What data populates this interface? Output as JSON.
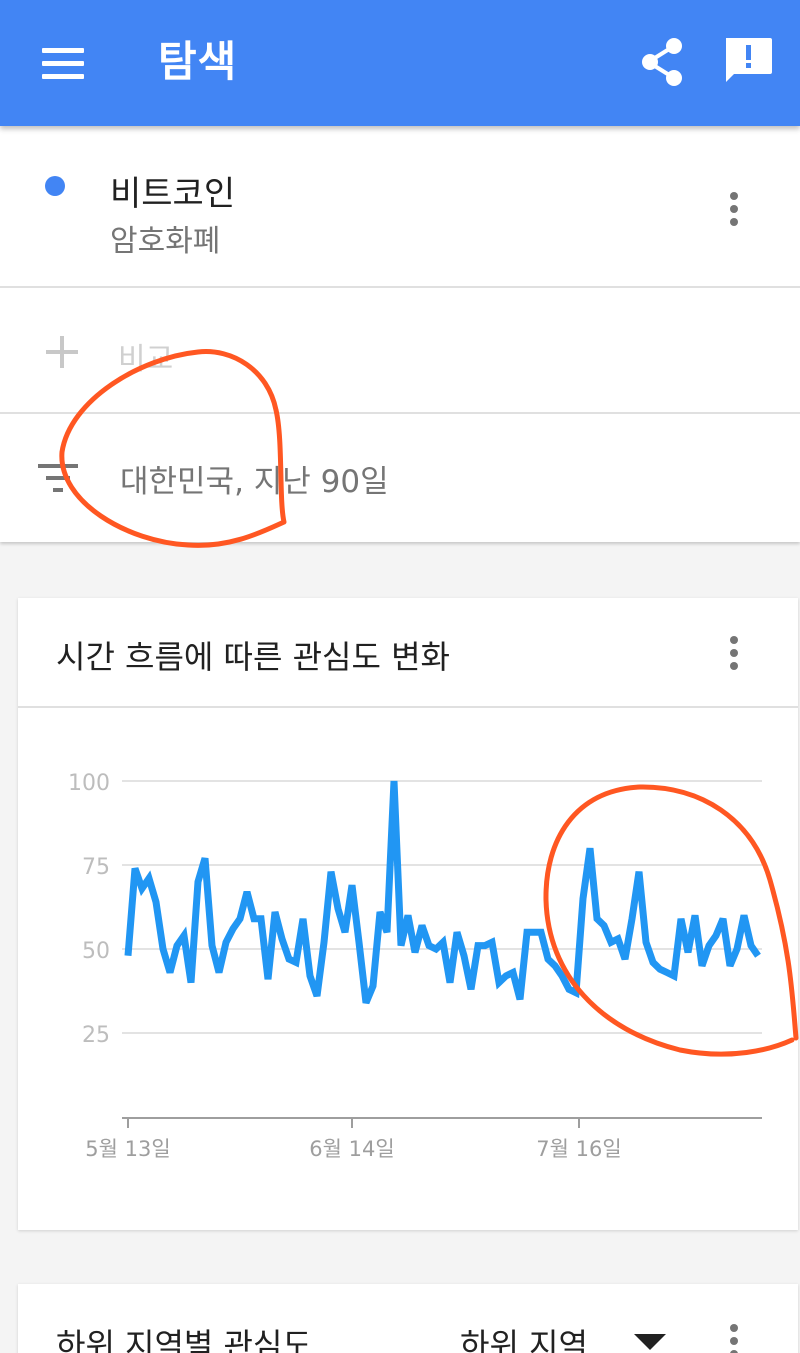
{
  "header": {
    "title": "탐색",
    "menu_icon": "menu-icon",
    "share_icon": "share-icon",
    "feedback_icon": "feedback-icon",
    "background_color": "#4285f4"
  },
  "search": {
    "term": "비트코인",
    "term_type": "암호화폐",
    "term_color": "#4285f4",
    "compare_label": "비교",
    "filter_label": "대한민국, 지난 90일"
  },
  "interest_over_time": {
    "title": "시간 흐름에 따른 관심도 변화"
  },
  "chart_data": {
    "type": "line",
    "title": "시간 흐름에 따른 관심도 변화",
    "xlabel": "",
    "ylabel": "",
    "ylim": [
      0,
      100
    ],
    "yticks": [
      25,
      50,
      75,
      100
    ],
    "xticks": [
      "5월 13일",
      "6월 14일",
      "7월 16일"
    ],
    "grid": true,
    "line_color": "#2196f3",
    "series": [
      {
        "values": [
          48,
          74,
          68,
          71,
          64,
          50,
          43,
          51,
          54,
          40,
          70,
          77,
          51,
          43,
          52,
          56,
          59,
          67,
          59,
          59,
          41,
          61,
          53,
          47,
          46,
          59,
          42,
          36,
          52,
          73,
          62,
          55,
          69,
          52,
          34,
          39,
          61,
          55,
          100,
          51,
          60,
          49,
          57,
          51,
          50,
          52,
          40,
          55,
          48,
          38,
          51,
          51,
          52,
          40,
          42,
          43,
          35,
          55,
          55,
          55,
          47,
          45,
          42,
          38,
          37,
          65,
          80,
          59,
          57,
          52,
          53,
          47,
          59,
          73,
          52,
          46,
          44,
          43,
          42,
          59,
          49,
          60,
          45,
          51,
          54,
          59,
          45,
          50,
          60,
          51,
          48
        ]
      }
    ]
  },
  "annotations": {
    "pen_color": "#ff5722"
  },
  "subregion": {
    "title": "하위 지역별 관심도",
    "select_value": "하위 지역"
  }
}
